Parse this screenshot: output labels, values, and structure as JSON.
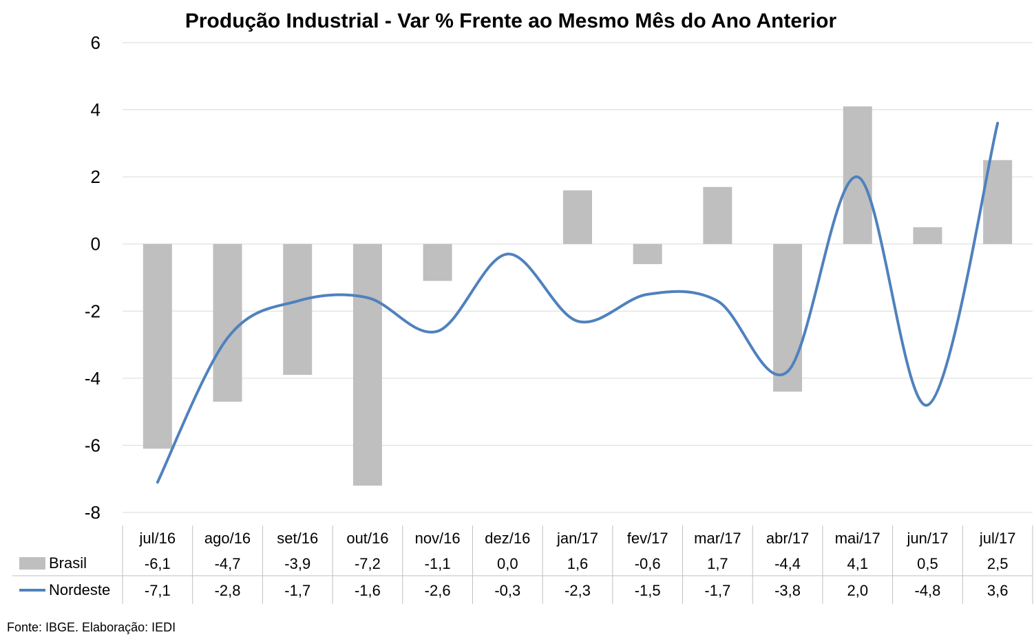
{
  "chart_data": {
    "type": "bar",
    "title": "Produção Industrial - Var % Frente ao Mesmo Mês do Ano Anterior",
    "categories": [
      "jul/16",
      "ago/16",
      "set/16",
      "out/16",
      "nov/16",
      "dez/16",
      "jan/17",
      "fev/17",
      "mar/17",
      "abr/17",
      "mai/17",
      "jun/17",
      "jul/17"
    ],
    "series": [
      {
        "name": "Brasil",
        "type": "bar",
        "color": "#bfbfbf",
        "values": [
          -6.1,
          -4.7,
          -3.9,
          -7.2,
          -1.1,
          0.0,
          1.6,
          -0.6,
          1.7,
          -4.4,
          4.1,
          0.5,
          2.5
        ],
        "labels": [
          "-6,1",
          "-4,7",
          "-3,9",
          "-7,2",
          "-1,1",
          "0,0",
          "1,6",
          "-0,6",
          "1,7",
          "-4,4",
          "4,1",
          "0,5",
          "2,5"
        ]
      },
      {
        "name": "Nordeste",
        "type": "line",
        "color": "#4f81bd",
        "values": [
          -7.1,
          -2.8,
          -1.7,
          -1.6,
          -2.6,
          -0.3,
          -2.3,
          -1.5,
          -1.7,
          -3.8,
          2.0,
          -4.8,
          3.6
        ],
        "labels": [
          "-7,1",
          "-2,8",
          "-1,7",
          "-1,6",
          "-2,6",
          "-0,3",
          "-2,3",
          "-1,5",
          "-1,7",
          "-3,8",
          "2,0",
          "-4,8",
          "3,6"
        ]
      }
    ],
    "ylim": [
      -8,
      6
    ],
    "yticks": [
      "6",
      "4",
      "2",
      "0",
      "-2",
      "-4",
      "-6",
      "-8"
    ],
    "ytick_values": [
      6,
      4,
      2,
      0,
      -2,
      -4,
      -6,
      -8
    ],
    "grid": true,
    "legend_placement": "data-table",
    "source": "Fonte: IBGE. Elaboração: IEDI"
  }
}
